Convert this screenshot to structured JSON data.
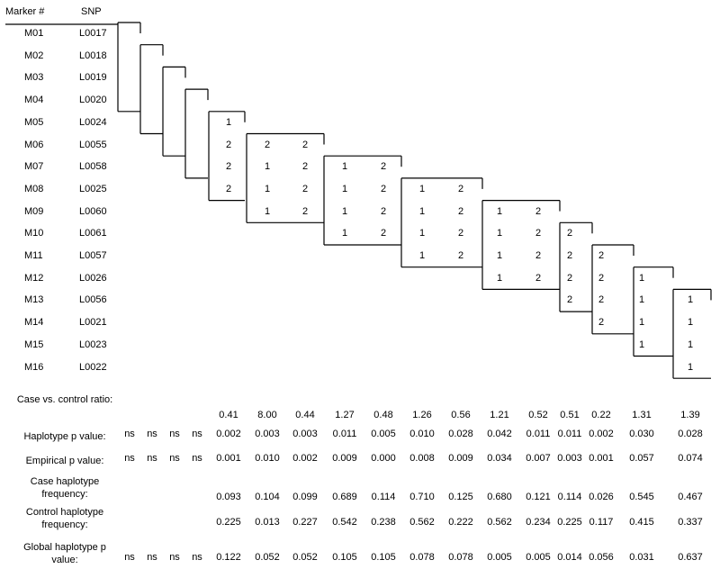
{
  "headers": {
    "marker": "Marker #",
    "snp": "SNP"
  },
  "markers": [
    {
      "marker": "M01",
      "snp": "L0017"
    },
    {
      "marker": "M02",
      "snp": "L0018"
    },
    {
      "marker": "M03",
      "snp": "L0019"
    },
    {
      "marker": "M04",
      "snp": "L0020"
    },
    {
      "marker": "M05",
      "snp": "L0024"
    },
    {
      "marker": "M06",
      "snp": "L0055"
    },
    {
      "marker": "M07",
      "snp": "L0058"
    },
    {
      "marker": "M08",
      "snp": "L0025"
    },
    {
      "marker": "M09",
      "snp": "L0060"
    },
    {
      "marker": "M10",
      "snp": "L0061"
    },
    {
      "marker": "M11",
      "snp": "L0057"
    },
    {
      "marker": "M12",
      "snp": "L0026"
    },
    {
      "marker": "M13",
      "snp": "L0056"
    },
    {
      "marker": "M14",
      "snp": "L0021"
    },
    {
      "marker": "M15",
      "snp": "L0023"
    },
    {
      "marker": "M16",
      "snp": "L0022"
    }
  ],
  "haplotypes": [
    {
      "start": 0,
      "alleles": []
    },
    {
      "start": 1,
      "alleles": []
    },
    {
      "start": 2,
      "alleles": []
    },
    {
      "start": 3,
      "alleles": []
    },
    {
      "start": 4,
      "alleles": [
        "1",
        "2",
        "2",
        "2"
      ]
    },
    {
      "start": 5,
      "alleles": [
        "2",
        "1",
        "1",
        "1"
      ]
    },
    {
      "start": 5,
      "alleles": [
        "2",
        "2",
        "2",
        "2"
      ]
    },
    {
      "start": 6,
      "alleles": [
        "1",
        "1",
        "1",
        "1"
      ]
    },
    {
      "start": 6,
      "alleles": [
        "2",
        "2",
        "2",
        "2"
      ]
    },
    {
      "start": 7,
      "alleles": [
        "1",
        "1",
        "1",
        "1"
      ]
    },
    {
      "start": 7,
      "alleles": [
        "2",
        "2",
        "2",
        "2"
      ]
    },
    {
      "start": 8,
      "alleles": [
        "1",
        "1",
        "1",
        "1"
      ]
    },
    {
      "start": 8,
      "alleles": [
        "2",
        "2",
        "2",
        "2"
      ]
    },
    {
      "start": 9,
      "alleles": [
        "2",
        "2",
        "2",
        "2"
      ]
    },
    {
      "start": 10,
      "alleles": [
        "2",
        "2",
        "2",
        "2"
      ]
    },
    {
      "start": 11,
      "alleles": [
        "1",
        "1",
        "1",
        "1"
      ]
    },
    {
      "start": 12,
      "alleles": [
        "1",
        "1",
        "1",
        "1"
      ]
    }
  ],
  "stats": [
    {
      "label": "Case vs. control ratio:",
      "values": [
        "",
        "",
        "",
        "",
        "0.41",
        "8.00",
        "0.44",
        "1.27",
        "0.48",
        "1.26",
        "0.56",
        "1.21",
        "0.52",
        "0.51",
        "0.22",
        "1.31",
        "1.39"
      ]
    },
    {
      "label": "Haplotype  p value:",
      "values": [
        "ns",
        "ns",
        "ns",
        "ns",
        "0.002",
        "0.003",
        "0.003",
        "0.011",
        "0.005",
        "0.010",
        "0.028",
        "0.042",
        "0.011",
        "0.011",
        "0.002",
        "0.030",
        "0.028"
      ]
    },
    {
      "label": "Empirical  p value:",
      "values": [
        "ns",
        "ns",
        "ns",
        "ns",
        "0.001",
        "0.010",
        "0.002",
        "0.009",
        "0.000",
        "0.008",
        "0.009",
        "0.034",
        "0.007",
        "0.003",
        "0.001",
        "0.057",
        "0.074"
      ]
    },
    {
      "label": "Case haplotype frequency:",
      "values": [
        "",
        "",
        "",
        "",
        "0.093",
        "0.104",
        "0.099",
        "0.689",
        "0.114",
        "0.710",
        "0.125",
        "0.680",
        "0.121",
        "0.114",
        "0.026",
        "0.545",
        "0.467"
      ]
    },
    {
      "label": "Control haplotype frequency:",
      "values": [
        "",
        "",
        "",
        "",
        "0.225",
        "0.013",
        "0.227",
        "0.542",
        "0.238",
        "0.562",
        "0.222",
        "0.562",
        "0.234",
        "0.225",
        "0.117",
        "0.415",
        "0.337"
      ]
    },
    {
      "label": "Global  haplotype  p value:",
      "values": [
        "ns",
        "ns",
        "ns",
        "ns",
        "0.122",
        "0.052",
        "0.052",
        "0.105",
        "0.105",
        "0.078",
        "0.078",
        "0.005",
        "0.005",
        "0.014",
        "0.056",
        "0.031",
        "0.637"
      ]
    }
  ]
}
